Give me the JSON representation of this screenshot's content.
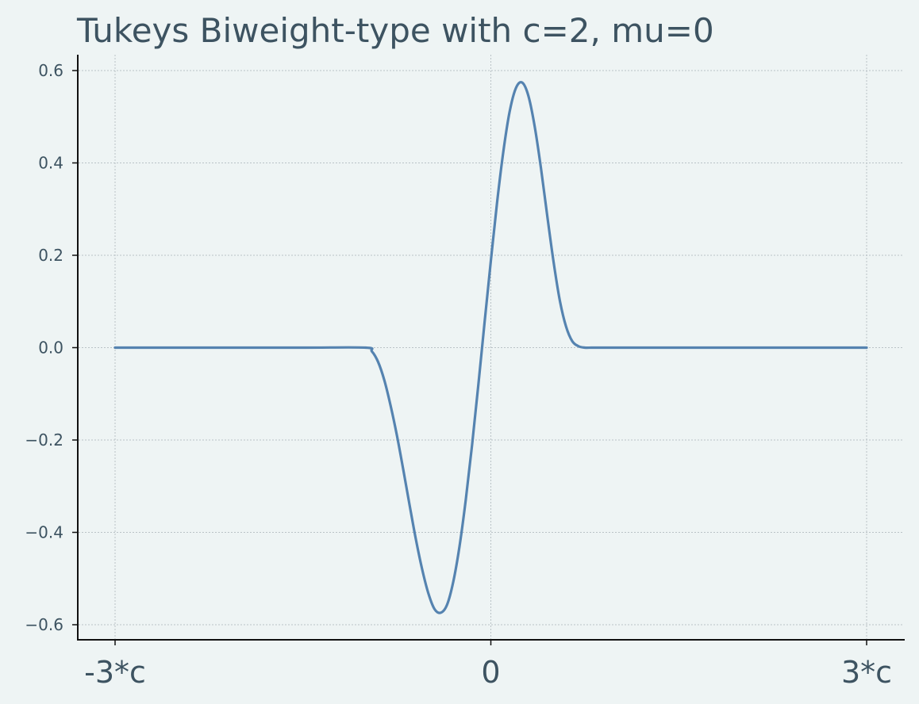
{
  "chart_data": {
    "type": "line",
    "title": "Tukeys Biweight-type with c=2, mu=0",
    "xlabel": "",
    "ylabel": "",
    "xlim": [
      -6,
      6
    ],
    "ylim": [
      -0.63,
      0.63
    ],
    "grid": true,
    "x_ticks": [
      {
        "value": -6,
        "label": "-3*c"
      },
      {
        "value": 0,
        "label": "0"
      },
      {
        "value": 6,
        "label": "3*c"
      }
    ],
    "y_ticks": [
      {
        "value": 0.6,
        "label": "0.6"
      },
      {
        "value": 0.4,
        "label": "0.4"
      },
      {
        "value": 0.2,
        "label": "0.2"
      },
      {
        "value": 0.0,
        "label": "0.0"
      },
      {
        "value": -0.2,
        "label": "−0.2"
      },
      {
        "value": -0.4,
        "label": "−0.4"
      },
      {
        "value": -0.6,
        "label": "−0.6"
      }
    ],
    "series": [
      {
        "color": "#5583b0",
        "x": [
          -6,
          -4.5,
          -3,
          -2,
          -1.9,
          -1.8,
          -1.7,
          -1.6,
          -1.5,
          -1.4,
          -1.3,
          -1.2,
          -1.1,
          -1.0,
          -0.9,
          -0.8,
          -0.7,
          -0.6,
          -0.5,
          -0.4,
          -0.3,
          -0.2,
          -0.1,
          0,
          0.1,
          0.2,
          0.3,
          0.4,
          0.5,
          0.6,
          0.7,
          0.8,
          0.9,
          1.0,
          1.1,
          1.2,
          1.3,
          1.4,
          1.5,
          1.6,
          1.7,
          1.8,
          1.9,
          2,
          3,
          4.5,
          6
        ],
        "y": [
          0,
          0,
          0,
          0,
          -0.008,
          -0.031,
          -0.071,
          -0.126,
          -0.19,
          -0.263,
          -0.339,
          -0.413,
          -0.478,
          -0.531,
          -0.566,
          -0.574,
          -0.557,
          -0.507,
          -0.43,
          -0.329,
          -0.211,
          -0.081,
          0.055,
          0.188,
          0.315,
          0.425,
          0.511,
          0.562,
          0.574,
          0.545,
          0.479,
          0.389,
          0.286,
          0.187,
          0.103,
          0.046,
          0.014,
          0.003,
          0,
          0,
          0,
          0,
          0,
          0,
          0,
          0,
          0
        ]
      }
    ]
  }
}
